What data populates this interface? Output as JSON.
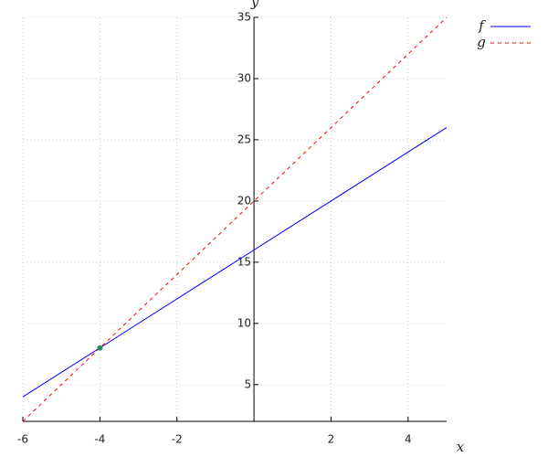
{
  "chart_data": {
    "type": "line",
    "x": [
      -6,
      5
    ],
    "series": [
      {
        "name": "f",
        "color": "#0000ff",
        "dashed": false,
        "values": [
          4,
          26
        ]
      },
      {
        "name": "g",
        "color": "#ff0000",
        "dashed": true,
        "values": [
          2,
          35
        ]
      }
    ],
    "markers": [
      {
        "x": -4,
        "y": 8,
        "color": "#2e8b57"
      }
    ],
    "xlim": [
      -6,
      5
    ],
    "ylim": [
      2,
      35
    ],
    "xticks": [
      -6,
      -4,
      -2,
      2,
      4
    ],
    "yticks": [
      5,
      10,
      15,
      20,
      25,
      30,
      35
    ],
    "xlabel": "x",
    "ylabel": "y",
    "grid": true,
    "legend": "upper right"
  }
}
